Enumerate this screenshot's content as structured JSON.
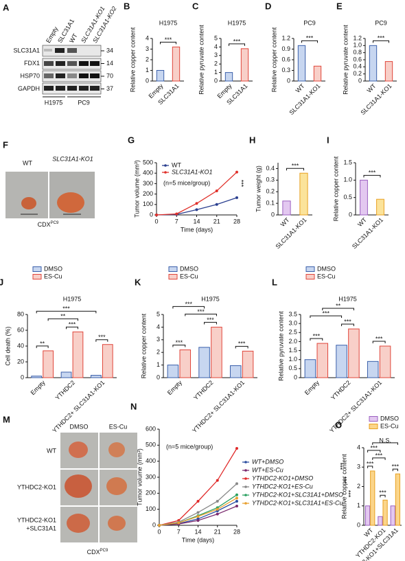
{
  "blot": {
    "panel": "A",
    "lanes": [
      "Empty",
      "SLC31A1",
      "WT",
      "SLC31A1-KO1",
      "SLC31A1-KO2"
    ],
    "rows": [
      {
        "label": "SLC31A1",
        "kda": 34
      },
      {
        "label": "FDX1",
        "kda": 14
      },
      {
        "label": "HSP70",
        "kda": 70
      },
      {
        "label": "GAPDH",
        "kda": 37
      }
    ],
    "groups": [
      "H1975",
      "PC9"
    ]
  },
  "photo_f": {
    "panel": "F",
    "labels": [
      "WT",
      "SLC31A1-KO1"
    ],
    "caption": "CDX",
    "caption_sup": "PC9"
  },
  "photo_m": {
    "panel": "M",
    "columns": [
      "DMSO",
      "ES-Cu"
    ],
    "rows": [
      [
        "WT"
      ],
      [
        "YTHDC2-KO1"
      ],
      [
        "YTHDC2-KO1",
        "+SLC31A1"
      ]
    ],
    "caption": "CDX",
    "caption_sup": "PC9"
  },
  "chart_data": [
    {
      "type": "bar",
      "panel": "B",
      "title": "H1975",
      "ylabel": "Relative copper content",
      "categories": [
        "Empty",
        "SLC31A1"
      ],
      "values": [
        1.0,
        3.2
      ],
      "colors": [
        "#c7d6f0",
        "#f8cfc8"
      ],
      "edgecolors": [
        "#3a5faa",
        "#e0453a"
      ],
      "ylim": [
        0,
        4
      ],
      "yticks": [
        0,
        1,
        2,
        3,
        4
      ],
      "annotations": [
        "***"
      ]
    },
    {
      "type": "bar",
      "panel": "C",
      "title": "H1975",
      "ylabel": "Relative pyruvate content",
      "categories": [
        "Empty",
        "SLC31A1"
      ],
      "values": [
        1.0,
        3.8
      ],
      "colors": [
        "#c7d6f0",
        "#f8cfc8"
      ],
      "edgecolors": [
        "#3a5faa",
        "#e0453a"
      ],
      "ylim": [
        0,
        5
      ],
      "yticks": [
        0,
        1,
        2,
        3,
        4,
        5
      ],
      "annotations": [
        "***"
      ]
    },
    {
      "type": "bar",
      "panel": "D",
      "title": "PC9",
      "ylabel": "Relative copper content",
      "categories": [
        "WT",
        "SLC31A1-KO1"
      ],
      "values": [
        1.0,
        0.42
      ],
      "colors": [
        "#c7d6f0",
        "#f8cfc8"
      ],
      "edgecolors": [
        "#3a5faa",
        "#e0453a"
      ],
      "ylim": [
        0,
        1.2
      ],
      "yticks": [
        0,
        0.3,
        0.6,
        0.9,
        1.2
      ],
      "annotations": [
        "***"
      ]
    },
    {
      "type": "bar",
      "panel": "E",
      "title": "PC9",
      "ylabel": "Relative pyruvate content",
      "categories": [
        "WT",
        "SLC31A1-KO1"
      ],
      "values": [
        1.0,
        0.55
      ],
      "colors": [
        "#c7d6f0",
        "#f8cfc8"
      ],
      "edgecolors": [
        "#3a5faa",
        "#e0453a"
      ],
      "ylim": [
        0,
        1.2
      ],
      "yticks": [
        0,
        0.2,
        0.4,
        0.6,
        0.8,
        {
          "value": 1,
          "label": "1.0"
        },
        1.2
      ],
      "annotations": [
        "***"
      ]
    },
    {
      "type": "line",
      "panel": "G",
      "ylabel": "Tumor volume (mm³)",
      "xlabel": "Time (days)",
      "x": [
        0,
        7,
        14,
        21,
        28
      ],
      "series": [
        {
          "name": "WT",
          "color": "#2a3f8f",
          "values": [
            0,
            5,
            50,
            100,
            165
          ]
        },
        {
          "name": "SLC31A1-KO1",
          "color": "#e0302a",
          "values": [
            0,
            10,
            110,
            230,
            410
          ]
        }
      ],
      "xlim": [
        0,
        28
      ],
      "xticks": [
        0,
        7,
        14,
        21,
        28
      ],
      "ylim": [
        0,
        500
      ],
      "yticks": [
        0,
        100,
        200,
        300,
        400,
        500
      ],
      "annotations": [
        "(n=5 mice/group)",
        "***"
      ]
    },
    {
      "type": "bar",
      "panel": "H",
      "ylabel": "Tumor weight (g)",
      "categories": [
        "WT",
        "SLC31A1-KO1"
      ],
      "values": [
        0.12,
        0.36
      ],
      "colors": [
        "#e3c8f0",
        "#fbe39a"
      ],
      "edgecolors": [
        "#9a5fc0",
        "#e8a020"
      ],
      "ylim": [
        0,
        0.45
      ],
      "yticks": [
        0,
        0.1,
        0.2,
        0.3,
        0.4
      ],
      "annotations": [
        "***"
      ]
    },
    {
      "type": "bar",
      "panel": "I",
      "ylabel": "Relative copper content",
      "categories": [
        "WT",
        "SLC31A1-KO1"
      ],
      "values": [
        1.0,
        0.45
      ],
      "colors": [
        "#e3c8f0",
        "#fbe39a"
      ],
      "edgecolors": [
        "#9a5fc0",
        "#e8a020"
      ],
      "ylim": [
        0,
        1.5
      ],
      "yticks": [
        0,
        0.5,
        {
          "value": 1,
          "label": "1.0"
        },
        1.5
      ],
      "annotations": [
        "***"
      ]
    },
    {
      "type": "bar",
      "panel": "J",
      "title": "H1975",
      "ylabel": "Cell death (%)",
      "categories": [
        "Empty",
        "YTHDC2",
        "YTHDC2+ SLC31A1-KO1"
      ],
      "series": [
        {
          "name": "DMSO",
          "color": "#c7d6f0",
          "edgecolor": "#3a5faa",
          "values": [
            2,
            7,
            3
          ]
        },
        {
          "name": "ES-Cu",
          "color": "#f8cfc8",
          "edgecolor": "#e0453a",
          "values": [
            34,
            58,
            42
          ]
        }
      ],
      "ylim": [
        0,
        80
      ],
      "yticks": [
        0,
        20,
        40,
        60,
        80
      ],
      "annotations": [
        "**",
        "**",
        "***",
        "***",
        "***"
      ]
    },
    {
      "type": "bar",
      "panel": "K",
      "title": "H1975",
      "ylabel": "Relative copper content",
      "categories": [
        "Empty",
        "YTHDC2",
        "YTHDC2+ SLC31A1-KO1"
      ],
      "series": [
        {
          "name": "DMSO",
          "color": "#c7d6f0",
          "edgecolor": "#3a5faa",
          "values": [
            1.0,
            2.4,
            0.95
          ]
        },
        {
          "name": "ES-Cu",
          "color": "#f8cfc8",
          "edgecolor": "#e0453a",
          "values": [
            2.2,
            4.0,
            2.1
          ]
        }
      ],
      "ylim": [
        0,
        5
      ],
      "yticks": [
        0,
        1,
        2,
        3,
        4,
        5
      ],
      "annotations": [
        "***",
        "***",
        "***",
        "***",
        "***"
      ]
    },
    {
      "type": "bar",
      "panel": "L",
      "title": "H1975",
      "ylabel": "Relative pyruvate content",
      "categories": [
        "Empty",
        "YTHDC2",
        "YTHDC2+ SLC31A1-KO1"
      ],
      "series": [
        {
          "name": "DMSO",
          "color": "#c7d6f0",
          "edgecolor": "#3a5faa",
          "values": [
            1.0,
            1.8,
            0.9
          ]
        },
        {
          "name": "ES-Cu",
          "color": "#f8cfc8",
          "edgecolor": "#e0453a",
          "values": [
            1.9,
            2.7,
            1.75
          ]
        }
      ],
      "ylim": [
        0,
        3.5
      ],
      "yticks": [
        0,
        0.5,
        {
          "value": 1,
          "label": "1.0"
        },
        1.5,
        {
          "value": 2,
          "label": "2.0"
        },
        2.5,
        {
          "value": 3,
          "label": "3.0"
        },
        3.5
      ],
      "annotations": [
        "***",
        "***",
        "***",
        "***",
        "**"
      ]
    },
    {
      "type": "line",
      "panel": "N",
      "ylabel": "Tumor volume (mm³)",
      "xlabel": "Time (days)",
      "x": [
        0,
        7,
        14,
        21,
        28
      ],
      "series": [
        {
          "name": "WT+DMSO",
          "color": "#2b4ea0",
          "values": [
            0,
            10,
            40,
            90,
            150
          ]
        },
        {
          "name": "WT+ES-Cu",
          "color": "#7a2a6e",
          "values": [
            0,
            8,
            30,
            70,
            120
          ]
        },
        {
          "name": "YTHDC2-KO1+DMSO",
          "color": "#e02a2a",
          "values": [
            0,
            30,
            150,
            280,
            480
          ]
        },
        {
          "name": "YTHDC2-KO1+ES-Cu",
          "color": "#888888",
          "values": [
            0,
            20,
            80,
            150,
            260
          ]
        },
        {
          "name": "YTHDC2-KO1+SLC31A1+DMSO",
          "color": "#2aa060",
          "values": [
            0,
            15,
            60,
            110,
            190
          ]
        },
        {
          "name": "YTHDC2-KO1+SLC31A1+ES-Cu",
          "color": "#e8a030",
          "values": [
            0,
            15,
            55,
            100,
            170
          ]
        }
      ],
      "xlim": [
        0,
        28
      ],
      "xticks": [
        0,
        7,
        14,
        21,
        28
      ],
      "ylim": [
        0,
        600
      ],
      "yticks": [
        0,
        100,
        200,
        300,
        400,
        500,
        600
      ],
      "annotations": [
        "(n=5 mice/group)",
        "***",
        "***",
        "***"
      ]
    },
    {
      "type": "bar",
      "panel": "O",
      "ylabel": "Relative copper content",
      "categories": [
        "WT",
        "YTHDC2-KO1",
        "YTHDC2-KO1+SLC31A1"
      ],
      "series": [
        {
          "name": "DMSO",
          "color": "#e3c8f0",
          "edgecolor": "#9a5fc0",
          "values": [
            1.0,
            0.45,
            1.0
          ]
        },
        {
          "name": "ES-Cu",
          "color": "#fbd58a",
          "edgecolor": "#e8a020",
          "values": [
            2.8,
            1.3,
            2.65
          ]
        }
      ],
      "ylim": [
        0,
        4
      ],
      "yticks": [
        0,
        1,
        2,
        3,
        4
      ],
      "annotations": [
        "***",
        "***",
        "***",
        "***",
        "***",
        "N.S."
      ]
    }
  ]
}
